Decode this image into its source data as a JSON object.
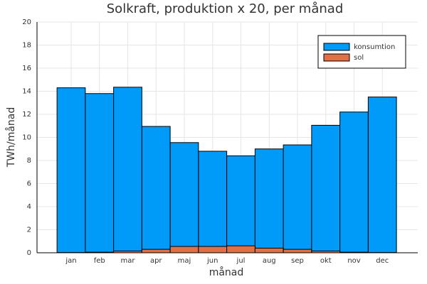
{
  "chart_data": {
    "type": "bar",
    "title": "Solkraft, produktion x 20, per månad",
    "x_label": "månad",
    "y_label": "TWh/månad",
    "categories": [
      "jan",
      "feb",
      "mar",
      "apr",
      "maj",
      "jun",
      "jul",
      "aug",
      "sep",
      "okt",
      "nov",
      "dec"
    ],
    "series": [
      {
        "name": "konsumtion",
        "color": "#009af9",
        "values": [
          14.3,
          13.8,
          14.35,
          10.95,
          9.55,
          8.8,
          8.4,
          9.0,
          9.35,
          11.05,
          12.2,
          13.5
        ]
      },
      {
        "name": "sol",
        "color": "#e26f46",
        "values": [
          0.02,
          0.05,
          0.15,
          0.3,
          0.55,
          0.55,
          0.6,
          0.4,
          0.3,
          0.15,
          0.05,
          0.02
        ]
      }
    ],
    "ylim": [
      0,
      20
    ],
    "yticks": [
      0,
      2,
      4,
      6,
      8,
      10,
      12,
      14,
      16,
      18,
      20
    ],
    "grid": true,
    "legend": "top-right"
  }
}
